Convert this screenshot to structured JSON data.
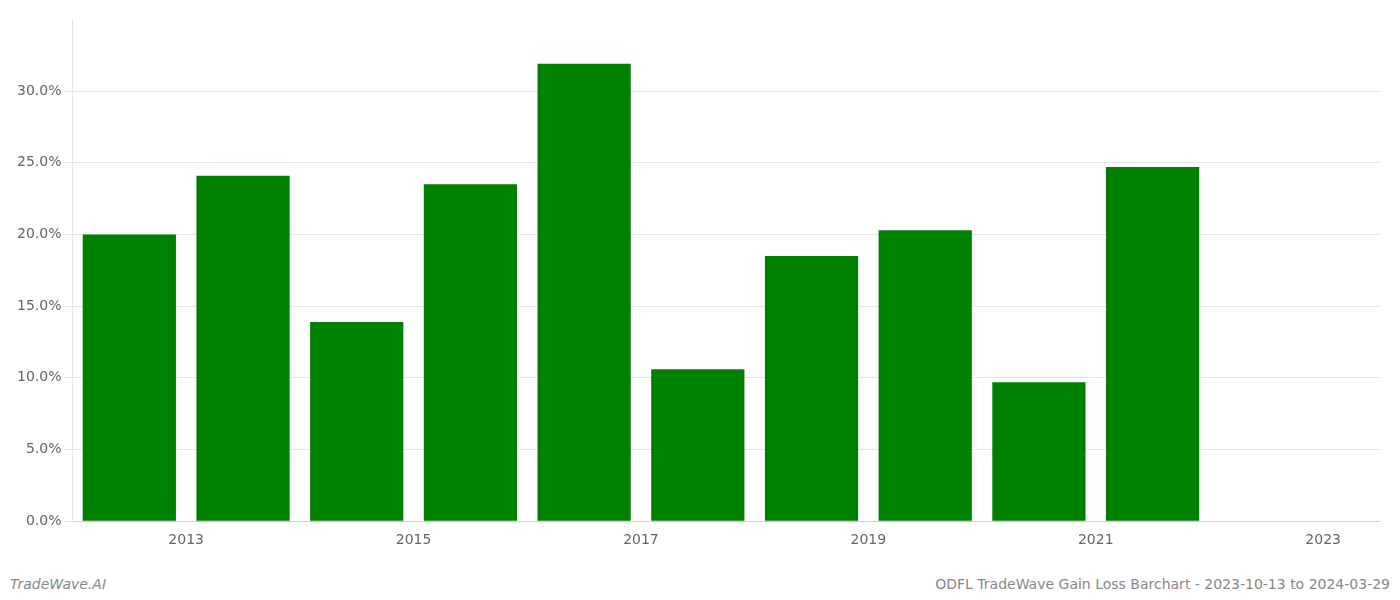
{
  "chart_data": {
    "type": "bar",
    "x": [
      2013,
      2014,
      2015,
      2016,
      2017,
      2018,
      2019,
      2020,
      2021,
      2022
    ],
    "values": [
      0.2,
      0.241,
      0.139,
      0.235,
      0.319,
      0.106,
      0.185,
      0.203,
      0.097,
      0.247
    ],
    "color": "#008000",
    "xlim": [
      2012.5,
      2024.0
    ],
    "xticks": [
      {
        "value": 2013.5,
        "label": "2013"
      },
      {
        "value": 2015.5,
        "label": "2015"
      },
      {
        "value": 2017.5,
        "label": "2017"
      },
      {
        "value": 2019.5,
        "label": "2019"
      },
      {
        "value": 2021.5,
        "label": "2021"
      },
      {
        "value": 2023.5,
        "label": "2023"
      }
    ],
    "ylim": [
      0,
      0.35
    ],
    "yticks": [
      {
        "value": 0.0,
        "label": "0.0%"
      },
      {
        "value": 0.05,
        "label": "5.0%"
      },
      {
        "value": 0.1,
        "label": "10.0%"
      },
      {
        "value": 0.15,
        "label": "15.0%"
      },
      {
        "value": 0.2,
        "label": "20.0%"
      },
      {
        "value": 0.25,
        "label": "25.0%"
      },
      {
        "value": 0.3,
        "label": "30.0%"
      }
    ],
    "grid": true,
    "annotations": [
      "TradeWave.AI",
      "ODFL TradeWave Gain Loss Barchart - 2023-10-13 to 2024-03-29"
    ]
  }
}
